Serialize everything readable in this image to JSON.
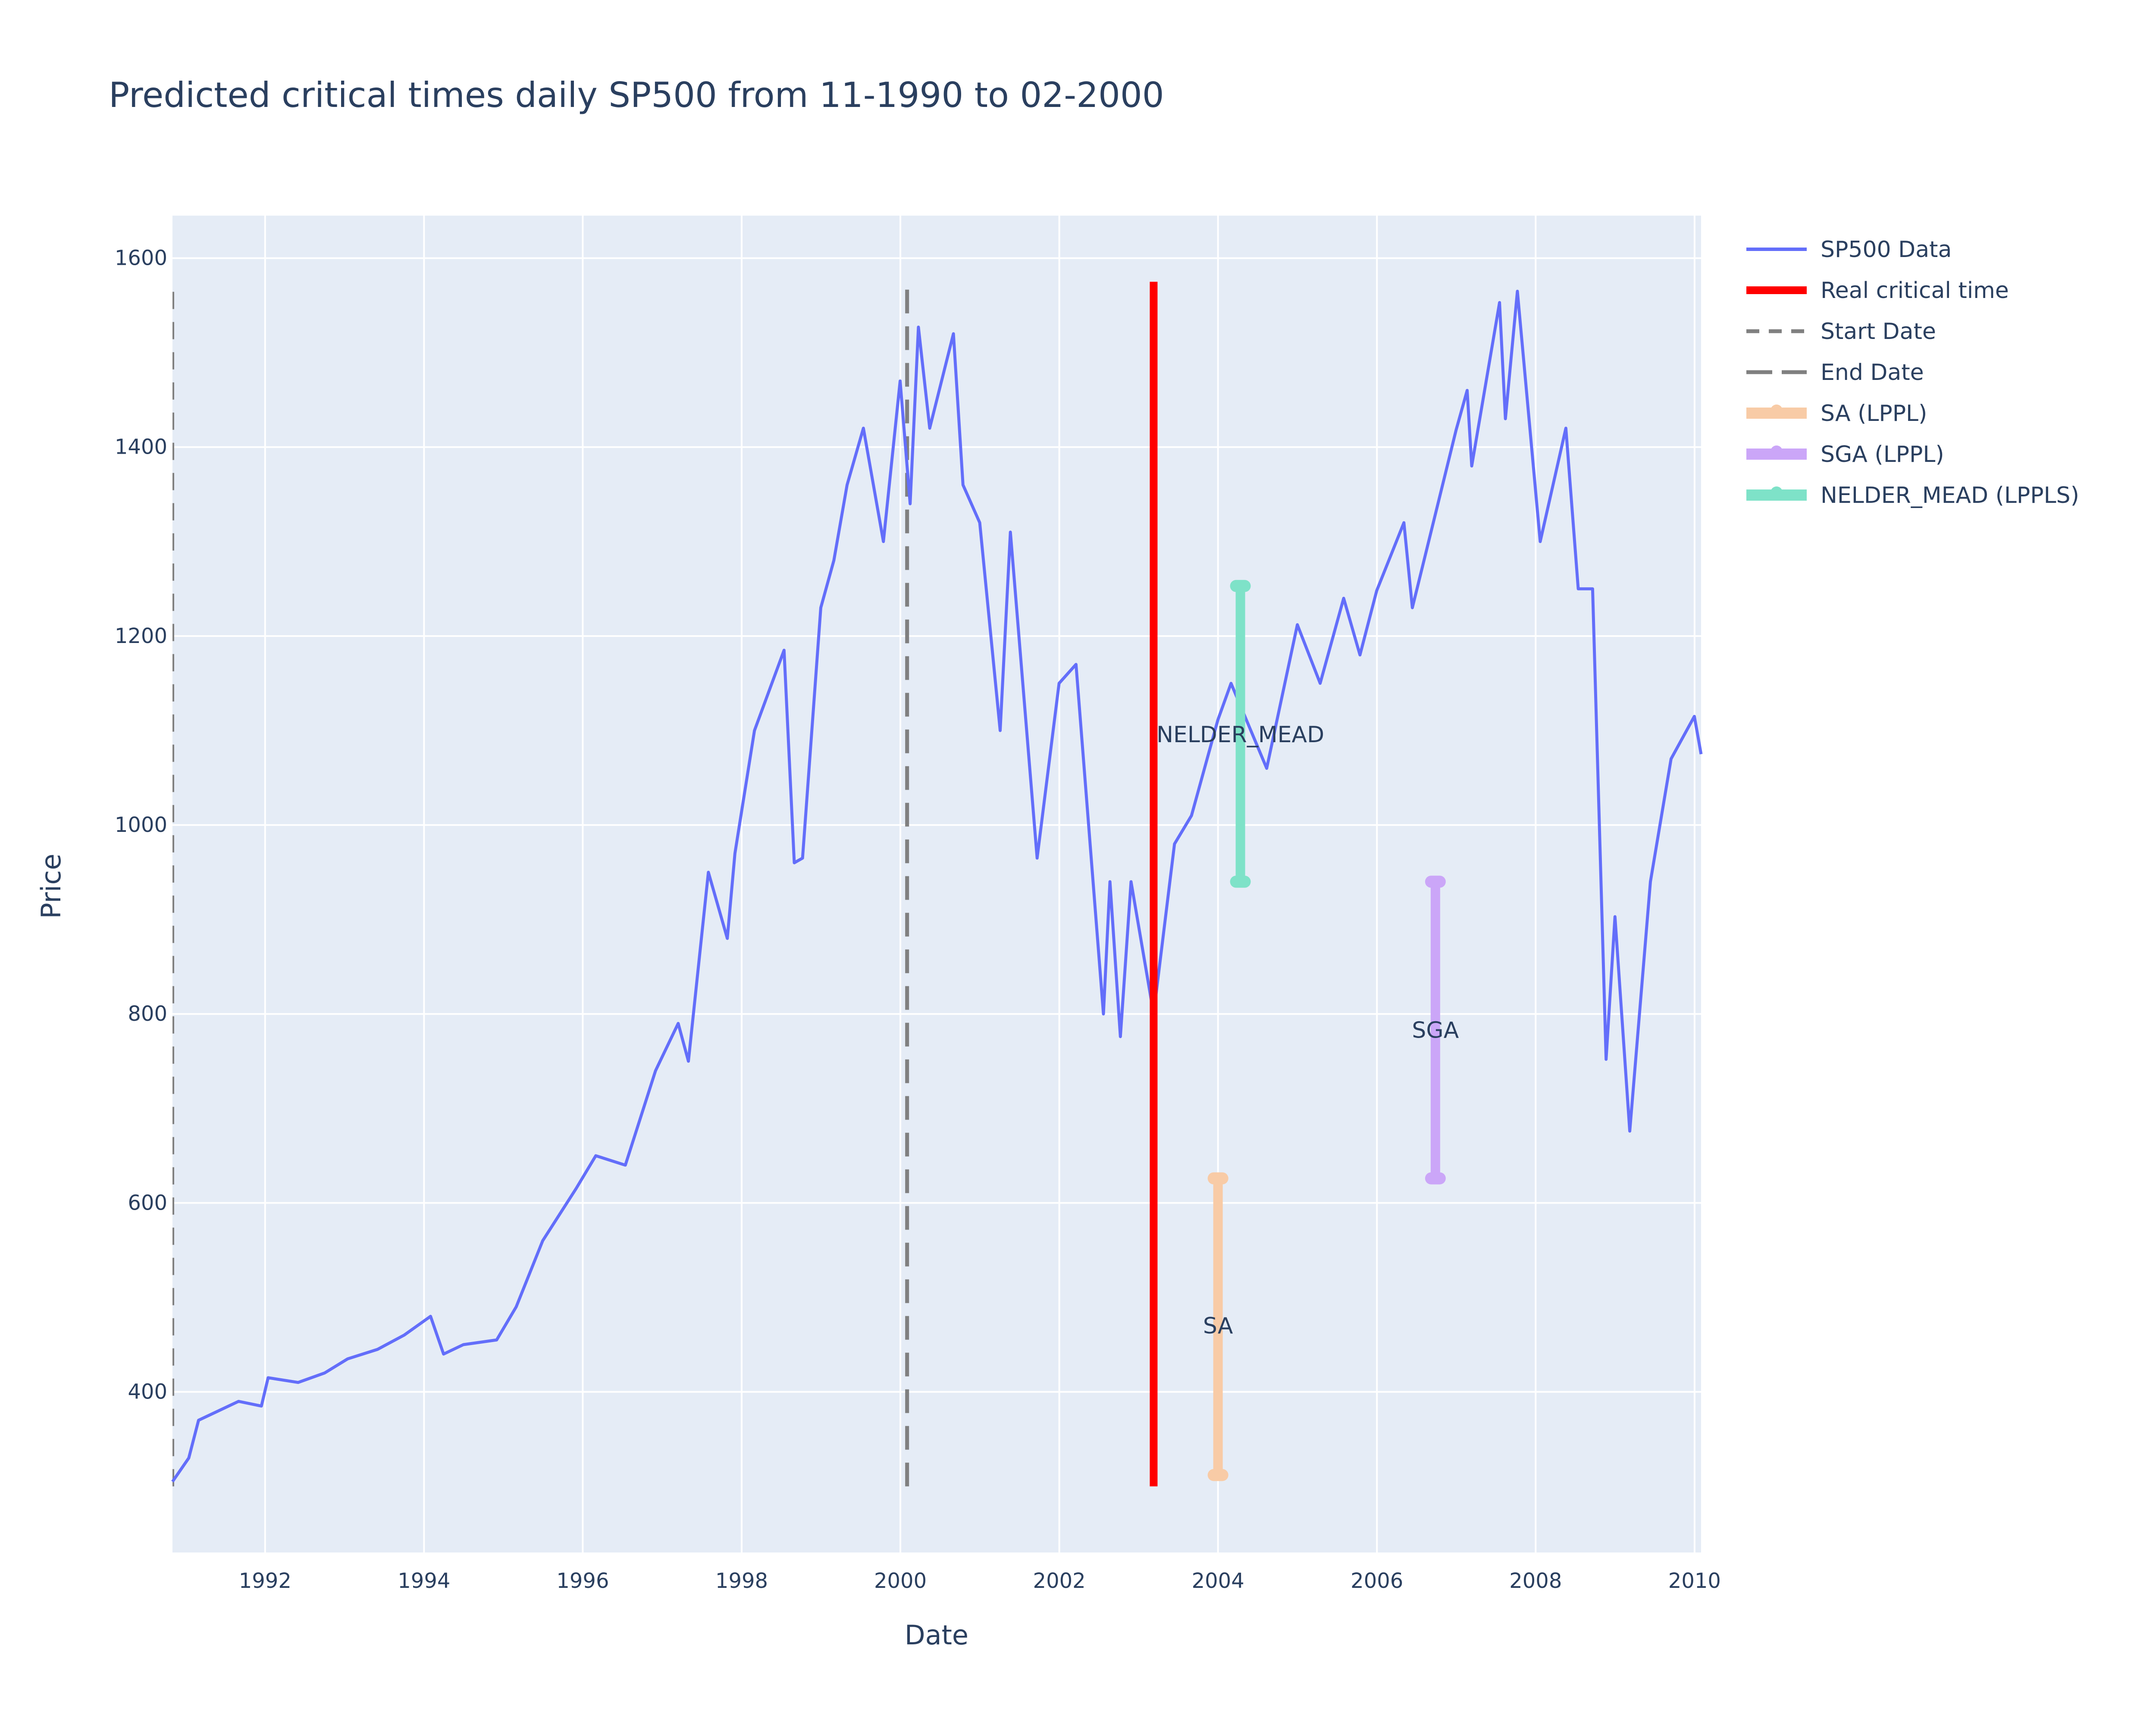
{
  "chart_data": {
    "type": "line",
    "title": "Predicted critical times daily SP500 from 11-1990 to 02-2000",
    "xlabel": "Date",
    "ylabel": "Price",
    "xlim": [
      "1990-11-01",
      "2010-01-31"
    ],
    "ylim": [
      230,
      1645
    ],
    "x_ticks": [
      "1992",
      "1994",
      "1996",
      "1998",
      "2000",
      "2002",
      "2004",
      "2006",
      "2008",
      "2010"
    ],
    "y_ticks": [
      400,
      600,
      800,
      1000,
      1200,
      1400,
      1600
    ],
    "grid": true,
    "legend_position": "top-right",
    "series": [
      {
        "name": "SP500 Data",
        "kind": "line",
        "color": "#636efa",
        "x": [
          "1990-11-01",
          "1991-01-15",
          "1991-03-01",
          "1991-06-01",
          "1991-09-01",
          "1991-12-15",
          "1992-01-15",
          "1992-06-01",
          "1992-10-01",
          "1993-01-15",
          "1993-06-01",
          "1993-10-01",
          "1994-01-31",
          "1994-04-01",
          "1994-07-01",
          "1994-12-01",
          "1995-03-01",
          "1995-07-01",
          "1995-12-01",
          "1996-03-01",
          "1996-07-15",
          "1996-12-01",
          "1997-03-15",
          "1997-05-01",
          "1997-08-01",
          "1997-10-27",
          "1997-12-01",
          "1998-03-01",
          "1998-07-15",
          "1998-08-31",
          "1998-10-08",
          "1998-12-31",
          "1999-03-01",
          "1999-05-01",
          "1999-07-15",
          "1999-10-15",
          "1999-12-31",
          "2000-02-15",
          "2000-03-24",
          "2000-05-15",
          "2000-09-01",
          "2000-10-15",
          "2000-12-31",
          "2001-04-04",
          "2001-05-21",
          "2001-09-21",
          "2001-12-31",
          "2002-03-19",
          "2002-07-23",
          "2002-08-22",
          "2002-10-09",
          "2002-11-27",
          "2003-03-11",
          "2003-06-15",
          "2003-09-01",
          "2003-12-31",
          "2004-03-01",
          "2004-08-12",
          "2004-12-31",
          "2005-04-15",
          "2005-08-01",
          "2005-10-15",
          "2005-12-31",
          "2006-05-05",
          "2006-06-13",
          "2006-12-31",
          "2007-02-20",
          "2007-03-13",
          "2007-07-19",
          "2007-08-15",
          "2007-10-09",
          "2008-01-22",
          "2008-05-19",
          "2008-07-15",
          "2008-09-19",
          "2008-11-20",
          "2008-12-31",
          "2009-03-09",
          "2009-06-12",
          "2009-09-15",
          "2009-12-31",
          "2010-01-31"
        ],
        "y": [
          305,
          330,
          370,
          380,
          390,
          385,
          415,
          410,
          420,
          435,
          445,
          460,
          480,
          440,
          450,
          455,
          490,
          560,
          615,
          650,
          640,
          740,
          790,
          750,
          950,
          880,
          970,
          1100,
          1185,
          960,
          965,
          1230,
          1280,
          1360,
          1420,
          1300,
          1470,
          1340,
          1527,
          1420,
          1520,
          1360,
          1320,
          1100,
          1310,
          965,
          1150,
          1170,
          800,
          940,
          776,
          940,
          800,
          980,
          1010,
          1111,
          1150,
          1060,
          1212,
          1150,
          1240,
          1180,
          1248,
          1320,
          1230,
          1418,
          1460,
          1380,
          1553,
          1430,
          1565,
          1300,
          1420,
          1250,
          1250,
          752,
          903,
          676,
          940,
          1070,
          1115,
          1075
        ]
      },
      {
        "name": "Real critical time",
        "kind": "vline",
        "color": "#ff0000",
        "x": "2003-03-11",
        "y_range": [
          300,
          1575
        ]
      },
      {
        "name": "Start Date",
        "kind": "vline",
        "color": "#808080",
        "x": "1990-11-01",
        "y_range": [
          300,
          1575
        ]
      },
      {
        "name": "End Date",
        "kind": "vline",
        "color": "#808080",
        "x": "2000-02-01",
        "y_range": [
          300,
          1570
        ]
      },
      {
        "name": "SA (LPPL)",
        "kind": "range",
        "color": "#f8cba6",
        "x": "2004-01-01",
        "y_range": [
          312,
          626
        ],
        "label": "SA",
        "label_y": 470
      },
      {
        "name": "SGA (LPPL)",
        "kind": "range",
        "color": "#cba6f8",
        "x": "2006-09-27",
        "y_range": [
          626,
          940
        ],
        "label": "SGA",
        "label_y": 783
      },
      {
        "name": "NELDER_MEAD (LPPLS)",
        "kind": "range",
        "color": "#7ee2c8",
        "x": "2004-04-13",
        "y_range": [
          940,
          1253
        ],
        "label": "NELDER_MEAD",
        "label_y": 1096
      }
    ]
  }
}
